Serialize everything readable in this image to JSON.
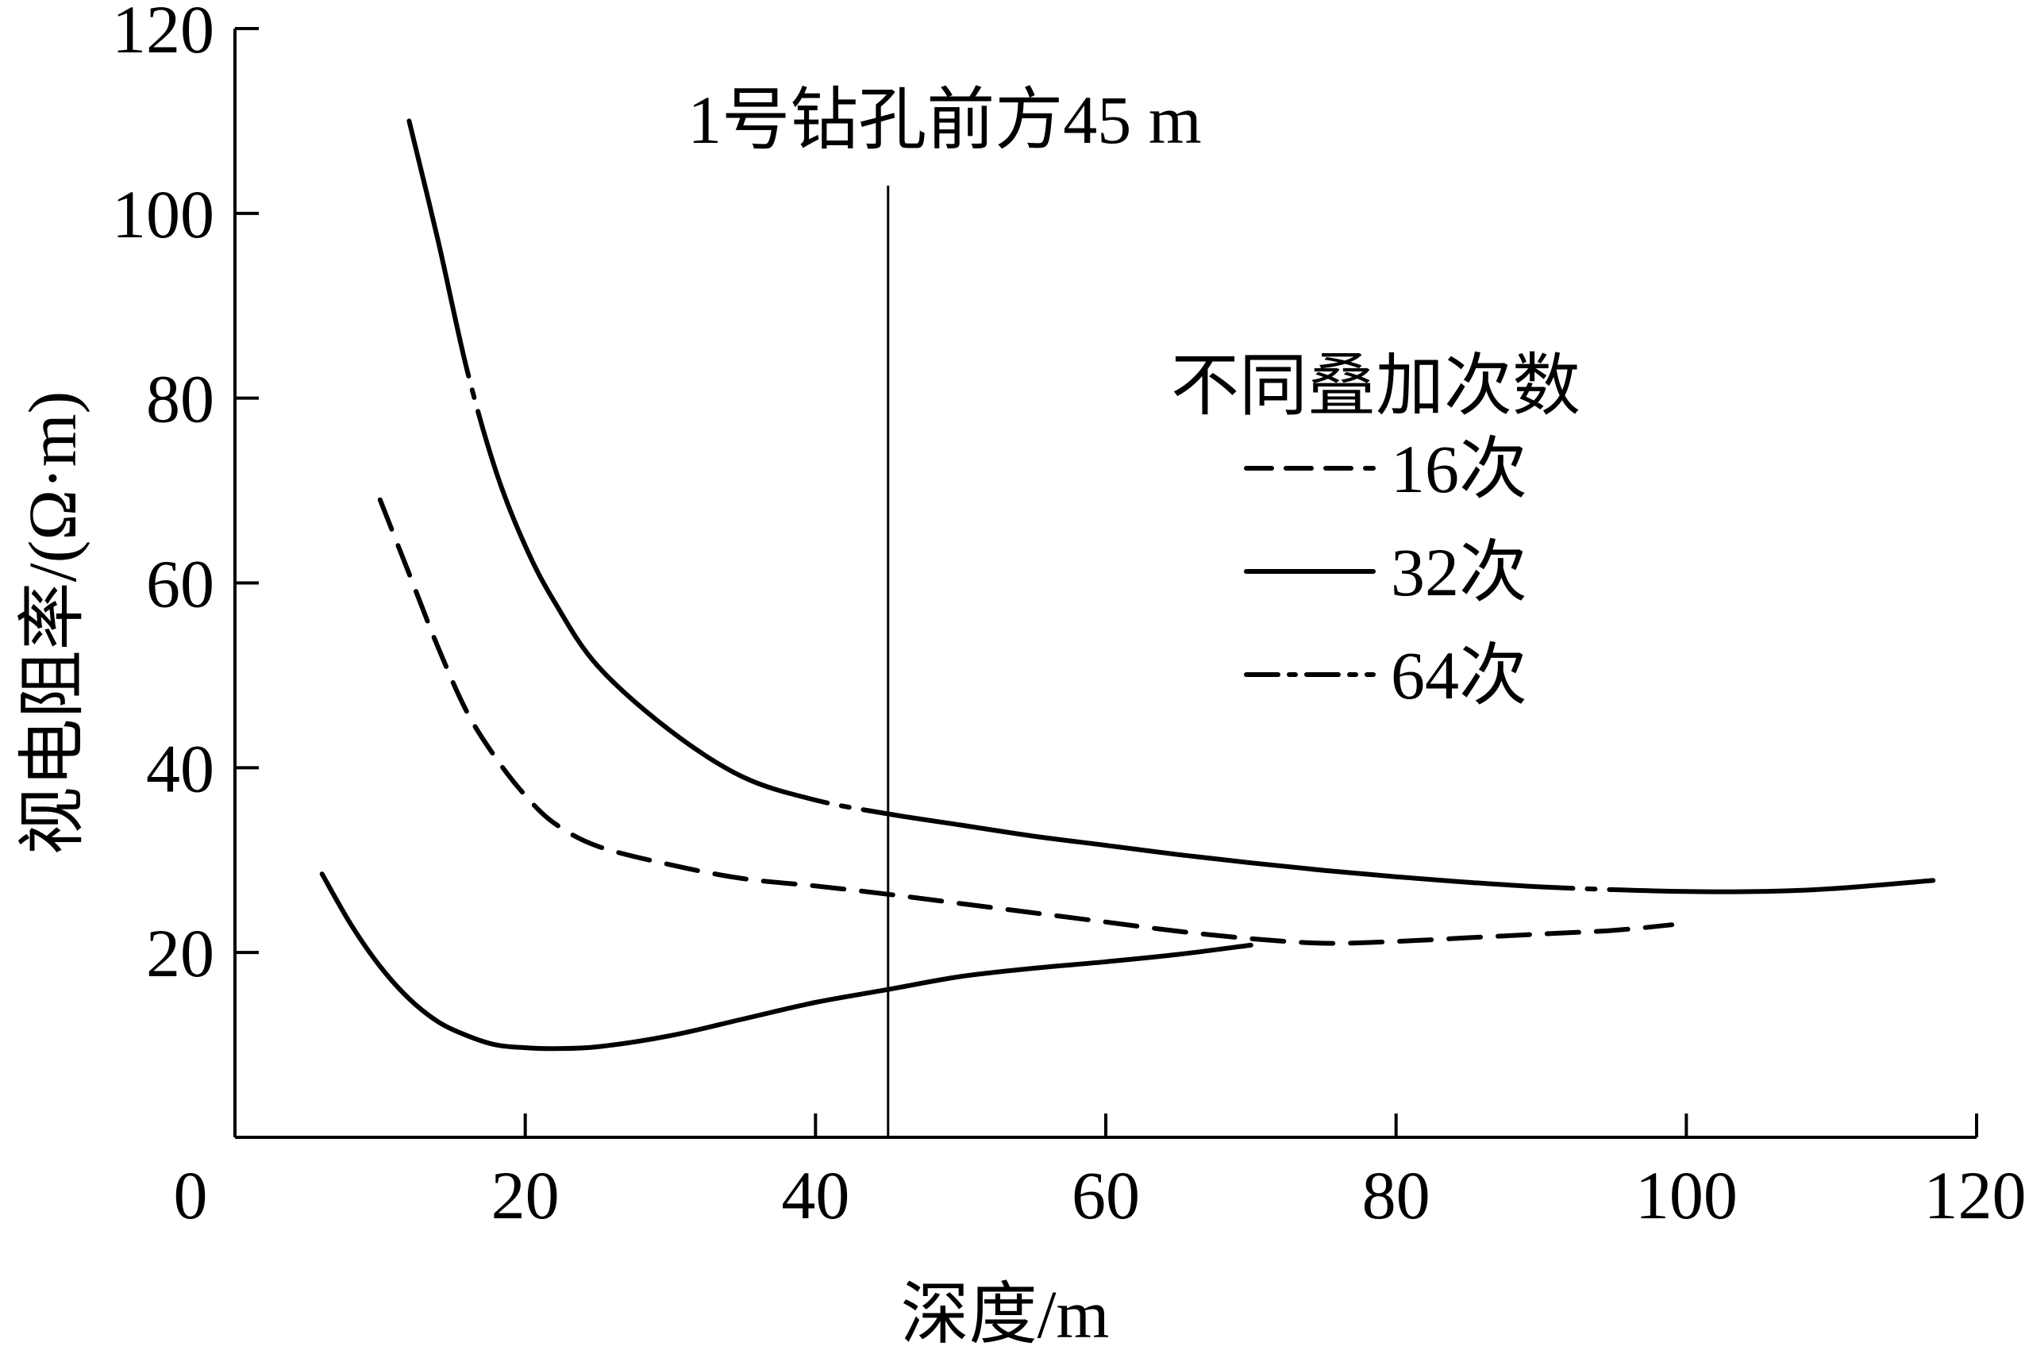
{
  "chart_data": {
    "type": "line",
    "title": "",
    "xlabel": "深度/m",
    "ylabel": "视电阻率/(Ω·m)",
    "xlim": [
      0,
      120
    ],
    "ylim": [
      0,
      120
    ],
    "xticks": [
      0,
      20,
      40,
      60,
      80,
      100,
      120
    ],
    "yticks": [
      20,
      40,
      60,
      80,
      100,
      120
    ],
    "grid": false,
    "legend": {
      "title": "不同叠加次数",
      "placement": "right",
      "entries": [
        {
          "label": "16次",
          "style": "dashed"
        },
        {
          "label": "32次",
          "style": "solid"
        },
        {
          "label": "64次",
          "style": "dashdot"
        }
      ]
    },
    "annotations": [
      {
        "text": "1号钻孔前方45 m",
        "x": 45,
        "type": "vertical-line",
        "y_top": 103
      }
    ],
    "series": [
      {
        "style": "dashed",
        "x": [
          10,
          12,
          14,
          16,
          18,
          20,
          22,
          25,
          30,
          35,
          40,
          45,
          50,
          55,
          60,
          65,
          70,
          75,
          80,
          85,
          90,
          95,
          99
        ],
        "values": [
          69,
          61,
          53,
          46,
          41,
          37,
          34,
          31.5,
          29.5,
          28,
          27.2,
          26.3,
          25.3,
          24.3,
          23.3,
          22.3,
          21.5,
          21,
          21.2,
          21.6,
          22,
          22.4,
          23
        ]
      },
      {
        "style": "mixed",
        "x": [
          12,
          14,
          16,
          18,
          20,
          22,
          25,
          30,
          35,
          40,
          45,
          50,
          55,
          60,
          65,
          70,
          75,
          80,
          85,
          90,
          95,
          100,
          105,
          110,
          117
        ],
        "values": [
          110,
          97,
          83,
          72,
          64,
          58,
          51,
          44,
          39,
          36.5,
          35,
          33.8,
          32.6,
          31.6,
          30.6,
          29.7,
          28.9,
          28.2,
          27.6,
          27.1,
          26.8,
          26.6,
          26.6,
          26.9,
          27.8
        ]
      },
      {
        "style": "solid",
        "x": [
          6,
          8,
          10,
          12,
          14,
          16,
          18,
          20,
          22,
          25,
          30,
          35,
          40,
          45,
          50,
          55,
          60,
          65,
          70
        ],
        "values": [
          28.5,
          23,
          18.5,
          15,
          12.5,
          11,
          10,
          9.7,
          9.6,
          9.8,
          11,
          12.8,
          14.6,
          16,
          17.4,
          18.3,
          19,
          19.8,
          20.8
        ]
      }
    ]
  }
}
